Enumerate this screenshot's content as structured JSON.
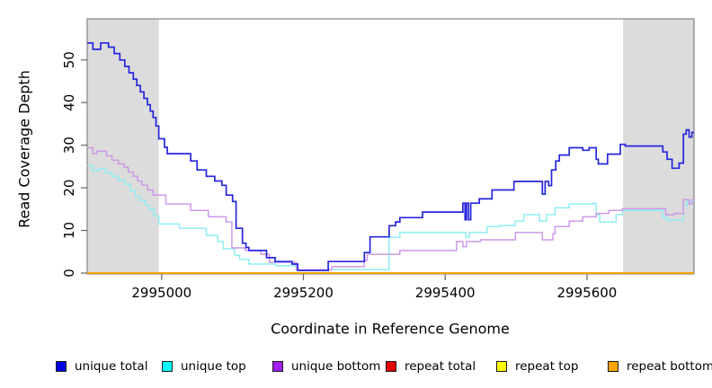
{
  "chart_data": {
    "type": "line",
    "step": true,
    "title": "",
    "xlabel": "Coordinate in Reference Genome",
    "ylabel": "Read Coverage Depth",
    "xlim": [
      2994895,
      2995751
    ],
    "ylim": [
      0,
      60
    ],
    "xticks": [
      2995000,
      2995200,
      2995400,
      2995600
    ],
    "yticks": [
      0,
      10,
      20,
      30,
      40,
      50
    ],
    "grid": false,
    "legend_position": "bottom",
    "colors": {
      "shaded_region": "#dcdcdc",
      "plot_border": "#828282",
      "tick": "#666666",
      "zero_line": "#ffa500"
    },
    "shaded_regions": [
      {
        "x0": 2994895,
        "x1": 2994996,
        "color": "#dcdcdc"
      },
      {
        "x0": 2995651,
        "x1": 2995751,
        "color": "#dcdcdc"
      }
    ],
    "series": [
      {
        "name": "unique total",
        "legend_color": "#0000e6",
        "line_color": "#2626dd",
        "line_width": 1.7,
        "points": [
          [
            2994895,
            54
          ],
          [
            2994903,
            52.5
          ],
          [
            2994914,
            54
          ],
          [
            2994925,
            53
          ],
          [
            2994933,
            51.5
          ],
          [
            2994941,
            50
          ],
          [
            2994948,
            48.5
          ],
          [
            2994954,
            47
          ],
          [
            2994960,
            45.5
          ],
          [
            2994965,
            44
          ],
          [
            2994970,
            42.5
          ],
          [
            2994975,
            41
          ],
          [
            2994980,
            39.5
          ],
          [
            2994984,
            38
          ],
          [
            2994988,
            36.5
          ],
          [
            2994992,
            34.5
          ],
          [
            2994996,
            31.5
          ],
          [
            2995004,
            29.5
          ],
          [
            2995008,
            28
          ],
          [
            2995041,
            26.3
          ],
          [
            2995050,
            24.2
          ],
          [
            2995063,
            22.7
          ],
          [
            2995075,
            21.6
          ],
          [
            2995085,
            20.6
          ],
          [
            2995091,
            18.3
          ],
          [
            2995100,
            16.8
          ],
          [
            2995105,
            10.5
          ],
          [
            2995114,
            7
          ],
          [
            2995119,
            6
          ],
          [
            2995123,
            5.3
          ],
          [
            2995148,
            3.6
          ],
          [
            2995160,
            2.7
          ],
          [
            2995184,
            2.1
          ],
          [
            2995192,
            0.6
          ],
          [
            2995235,
            2.7
          ],
          [
            2995286,
            4.8
          ],
          [
            2995294,
            8.5
          ],
          [
            2995321,
            11.1
          ],
          [
            2995330,
            12
          ],
          [
            2995336,
            13
          ],
          [
            2995368,
            14.3
          ],
          [
            2995425,
            16.4
          ],
          [
            2995428,
            12.5
          ],
          [
            2995430,
            16.4
          ],
          [
            2995433,
            12.5
          ],
          [
            2995436,
            16.4
          ],
          [
            2995448,
            17.4
          ],
          [
            2995466,
            19.5
          ],
          [
            2995497,
            21.5
          ],
          [
            2995537,
            18.5
          ],
          [
            2995541,
            21.5
          ],
          [
            2995546,
            20.5
          ],
          [
            2995550,
            24.2
          ],
          [
            2995556,
            26.3
          ],
          [
            2995561,
            27.7
          ],
          [
            2995575,
            29.4
          ],
          [
            2995594,
            28.8
          ],
          [
            2995603,
            29.4
          ],
          [
            2995613,
            26.7
          ],
          [
            2995616,
            25.6
          ],
          [
            2995629,
            27.9
          ],
          [
            2995647,
            30.2
          ],
          [
            2995654,
            29.8
          ],
          [
            2995707,
            28.4
          ],
          [
            2995713,
            26.7
          ],
          [
            2995720,
            24.6
          ],
          [
            2995730,
            25.8
          ],
          [
            2995736,
            32.6
          ],
          [
            2995740,
            33.6
          ],
          [
            2995744,
            31.9
          ],
          [
            2995748,
            33
          ]
        ]
      },
      {
        "name": "unique top",
        "legend_color": "#00ffff",
        "line_color": "#8feef2",
        "line_width": 1.5,
        "points": [
          [
            2994895,
            25.2
          ],
          [
            2994903,
            24
          ],
          [
            2994911,
            24.5
          ],
          [
            2994921,
            23.5
          ],
          [
            2994930,
            22.7
          ],
          [
            2994939,
            21.8
          ],
          [
            2994948,
            20.8
          ],
          [
            2994956,
            19.3
          ],
          [
            2994963,
            18
          ],
          [
            2994970,
            17
          ],
          [
            2994977,
            16
          ],
          [
            2994983,
            15
          ],
          [
            2994989,
            13.4
          ],
          [
            2994996,
            11.5
          ],
          [
            2995025,
            10.5
          ],
          [
            2995063,
            8.8
          ],
          [
            2995079,
            7.4
          ],
          [
            2995087,
            5.7
          ],
          [
            2995103,
            4.2
          ],
          [
            2995110,
            3.2
          ],
          [
            2995123,
            2.1
          ],
          [
            2995161,
            1.7
          ],
          [
            2995190,
            0.8
          ],
          [
            2995321,
            8.4
          ],
          [
            2995336,
            9.5
          ],
          [
            2995429,
            8.4
          ],
          [
            2995434,
            9.5
          ],
          [
            2995459,
            10.9
          ],
          [
            2995476,
            11.1
          ],
          [
            2995499,
            12.2
          ],
          [
            2995511,
            13.7
          ],
          [
            2995533,
            12.2
          ],
          [
            2995543,
            13.7
          ],
          [
            2995555,
            15.3
          ],
          [
            2995575,
            16.2
          ],
          [
            2995609,
            16.4
          ],
          [
            2995613,
            13.7
          ],
          [
            2995618,
            12
          ],
          [
            2995641,
            13.7
          ],
          [
            2995650,
            14.7
          ],
          [
            2995707,
            13
          ],
          [
            2995713,
            12.4
          ],
          [
            2995736,
            15.8
          ],
          [
            2995741,
            16.8
          ],
          [
            2995745,
            16.2
          ],
          [
            2995748,
            16.8
          ]
        ]
      },
      {
        "name": "unique bottom",
        "legend_color": "#a020f0",
        "line_color": "#cc99e8",
        "line_width": 1.5,
        "points": [
          [
            2994895,
            29.4
          ],
          [
            2994903,
            28
          ],
          [
            2994909,
            28.6
          ],
          [
            2994922,
            27.5
          ],
          [
            2994930,
            26.5
          ],
          [
            2994939,
            25.6
          ],
          [
            2994947,
            24.8
          ],
          [
            2994953,
            23.7
          ],
          [
            2994960,
            22.7
          ],
          [
            2994966,
            21.6
          ],
          [
            2994972,
            20.6
          ],
          [
            2994980,
            19.5
          ],
          [
            2994988,
            18.3
          ],
          [
            2995006,
            16.2
          ],
          [
            2995041,
            14.7
          ],
          [
            2995066,
            13.2
          ],
          [
            2995091,
            12
          ],
          [
            2995099,
            5.9
          ],
          [
            2995118,
            5.3
          ],
          [
            2995140,
            4.4
          ],
          [
            2995152,
            2.5
          ],
          [
            2995190,
            0.8
          ],
          [
            2995240,
            1.5
          ],
          [
            2995286,
            3
          ],
          [
            2995290,
            4.4
          ],
          [
            2995336,
            5.3
          ],
          [
            2995416,
            7.4
          ],
          [
            2995425,
            6.2
          ],
          [
            2995430,
            7.4
          ],
          [
            2995450,
            7.8
          ],
          [
            2995499,
            9.5
          ],
          [
            2995537,
            7.8
          ],
          [
            2995552,
            9.2
          ],
          [
            2995555,
            10.9
          ],
          [
            2995575,
            12.2
          ],
          [
            2995594,
            13.2
          ],
          [
            2995613,
            14
          ],
          [
            2995631,
            14.7
          ],
          [
            2995650,
            15.1
          ],
          [
            2995711,
            13.7
          ],
          [
            2995723,
            14
          ],
          [
            2995736,
            17.2
          ],
          [
            2995744,
            16.2
          ],
          [
            2995748,
            17.2
          ]
        ]
      },
      {
        "name": "repeat total",
        "legend_color": "#e60000",
        "line_color": "#e60000",
        "line_width": 1.5,
        "points": [
          [
            2994895,
            0
          ]
        ]
      },
      {
        "name": "repeat top",
        "legend_color": "#ffff00",
        "line_color": "#ffff00",
        "line_width": 1.5,
        "points": [
          [
            2994895,
            0
          ]
        ]
      },
      {
        "name": "repeat bottom",
        "legend_color": "#ffa500",
        "line_color": "#ffa500",
        "line_width": 1.8,
        "points": [
          [
            2994895,
            0
          ]
        ]
      }
    ]
  }
}
